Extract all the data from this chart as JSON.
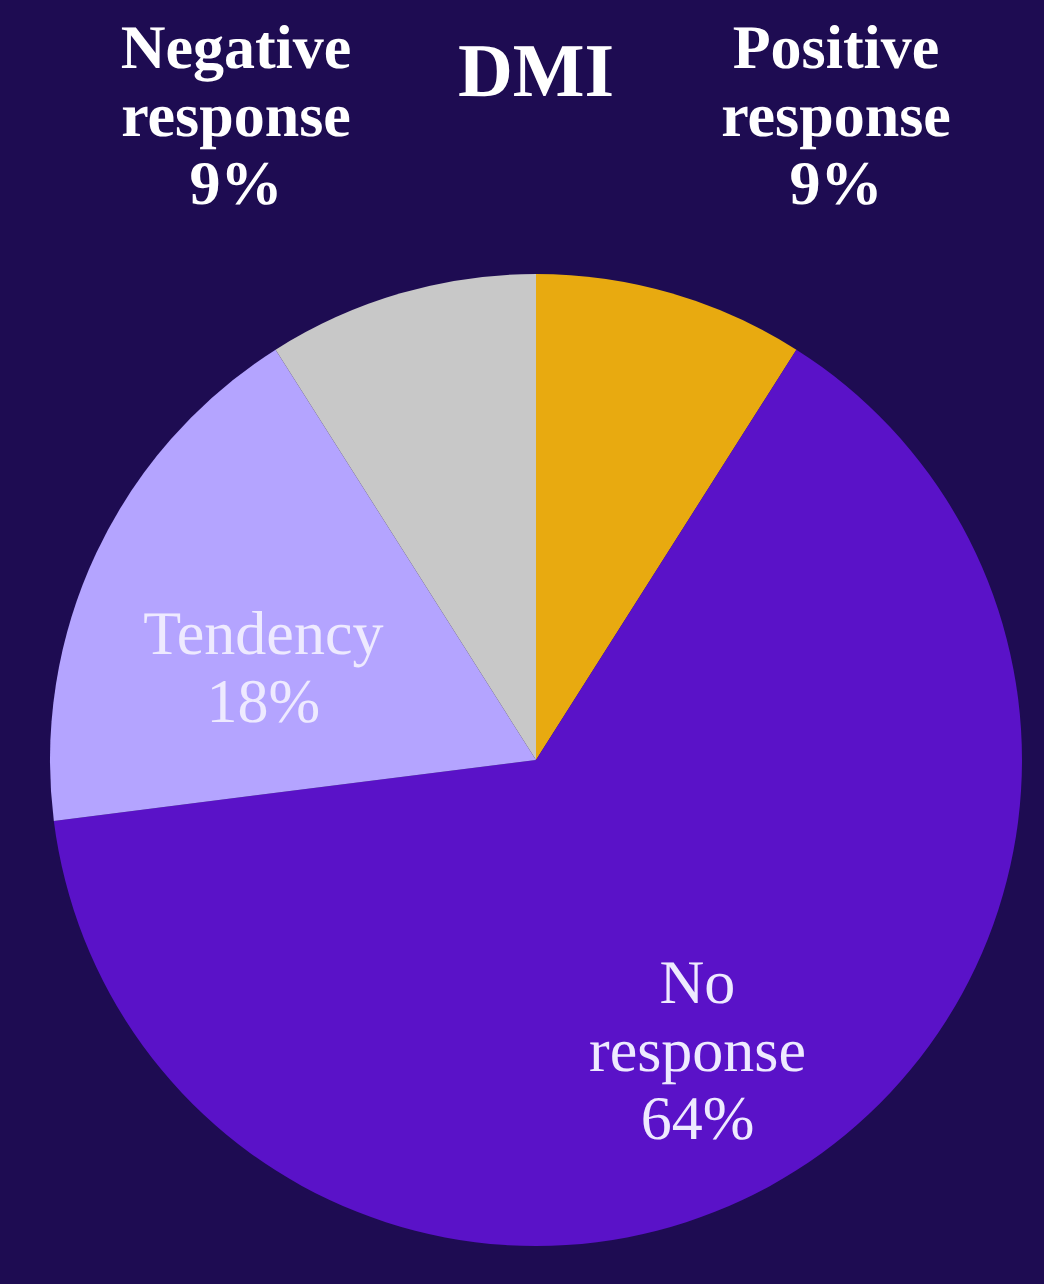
{
  "chart_data": {
    "type": "pie",
    "title": "DMI",
    "categories": [
      "Positive response",
      "No response",
      "Tendency",
      "Negative response"
    ],
    "values": [
      9,
      64,
      18,
      9
    ],
    "value_labels": [
      "9%",
      "64%",
      "18%",
      "9%"
    ],
    "colors": [
      "#e8aa10",
      "#5a12c8",
      "#b4a4ff",
      "#c8c8c8"
    ],
    "legend": false
  }
}
